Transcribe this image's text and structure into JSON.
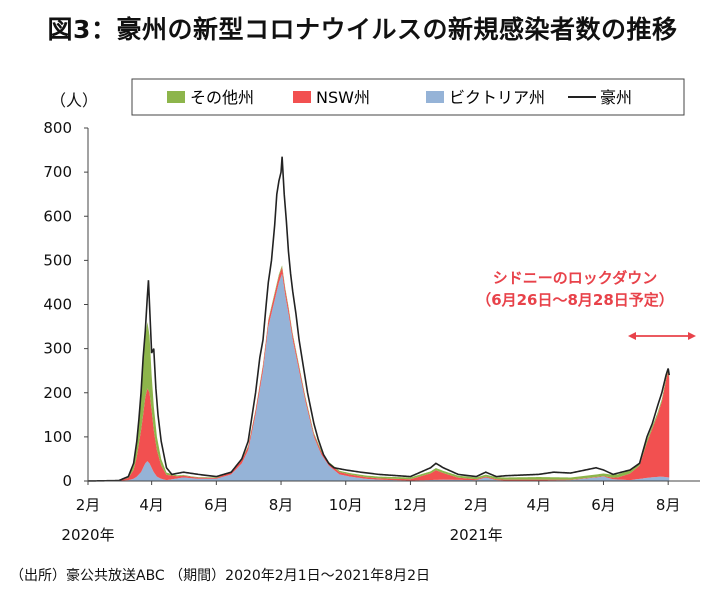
{
  "title": "図3：豪州の新型コロナウイルスの新規感染者数の推移",
  "source_note": "（出所）豪公共放送ABC （期間）2020年2月1日～2021年8月2日",
  "chart_data": {
    "type": "area",
    "stacked": true,
    "yunit": "（人）",
    "ylim": [
      0,
      800
    ],
    "yticks": [
      0,
      100,
      200,
      300,
      400,
      500,
      600,
      700,
      800
    ],
    "xlim": [
      "2020-02-01",
      "2021-08-31"
    ],
    "xticks": [
      {
        "date": "2020-02-01",
        "label": "2月"
      },
      {
        "date": "2020-04-01",
        "label": "4月"
      },
      {
        "date": "2020-06-01",
        "label": "6月"
      },
      {
        "date": "2020-08-01",
        "label": "8月"
      },
      {
        "date": "2020-10-01",
        "label": "10月"
      },
      {
        "date": "2020-12-01",
        "label": "12月"
      },
      {
        "date": "2021-02-01",
        "label": "2月"
      },
      {
        "date": "2021-04-01",
        "label": "4月"
      },
      {
        "date": "2021-06-01",
        "label": "6月"
      },
      {
        "date": "2021-08-01",
        "label": "8月"
      }
    ],
    "year_labels": [
      {
        "date": "2020-02-01",
        "label": "2020年"
      },
      {
        "date": "2021-02-01",
        "label": "2021年"
      }
    ],
    "legend_placement": "top",
    "grid": false,
    "series": [
      {
        "name": "その他州",
        "color": "#8db54b",
        "points": [
          [
            "2020-02-01",
            0
          ],
          [
            "2020-03-01",
            0
          ],
          [
            "2020-03-10",
            2
          ],
          [
            "2020-03-15",
            10
          ],
          [
            "2020-03-18",
            25
          ],
          [
            "2020-03-20",
            45
          ],
          [
            "2020-03-22",
            70
          ],
          [
            "2020-03-24",
            120
          ],
          [
            "2020-03-26",
            140
          ],
          [
            "2020-03-28",
            150
          ],
          [
            "2020-03-30",
            130
          ],
          [
            "2020-04-01",
            80
          ],
          [
            "2020-04-03",
            55
          ],
          [
            "2020-04-06",
            30
          ],
          [
            "2020-04-10",
            15
          ],
          [
            "2020-04-15",
            5
          ],
          [
            "2020-04-25",
            2
          ],
          [
            "2020-05-10",
            1
          ],
          [
            "2020-07-01",
            2
          ],
          [
            "2020-08-01",
            4
          ],
          [
            "2020-09-01",
            3
          ],
          [
            "2020-10-01",
            3
          ],
          [
            "2020-11-01",
            4
          ],
          [
            "2020-12-01",
            4
          ],
          [
            "2021-01-01",
            5
          ],
          [
            "2021-02-01",
            4
          ],
          [
            "2021-03-01",
            5
          ],
          [
            "2021-04-01",
            6
          ],
          [
            "2021-05-01",
            5
          ],
          [
            "2021-06-01",
            6
          ],
          [
            "2021-07-01",
            8
          ],
          [
            "2021-07-15",
            6
          ],
          [
            "2021-08-02",
            5
          ]
        ]
      },
      {
        "name": "NSW州",
        "color": "#f25050",
        "points": [
          [
            "2020-02-01",
            0
          ],
          [
            "2020-03-01",
            1
          ],
          [
            "2020-03-10",
            5
          ],
          [
            "2020-03-15",
            20
          ],
          [
            "2020-03-18",
            45
          ],
          [
            "2020-03-20",
            70
          ],
          [
            "2020-03-22",
            95
          ],
          [
            "2020-03-24",
            120
          ],
          [
            "2020-03-26",
            150
          ],
          [
            "2020-03-28",
            165
          ],
          [
            "2020-03-30",
            160
          ],
          [
            "2020-04-01",
            130
          ],
          [
            "2020-04-03",
            95
          ],
          [
            "2020-04-06",
            60
          ],
          [
            "2020-04-10",
            30
          ],
          [
            "2020-04-15",
            12
          ],
          [
            "2020-04-25",
            5
          ],
          [
            "2020-05-10",
            3
          ],
          [
            "2020-06-01",
            2
          ],
          [
            "2020-07-01",
            8
          ],
          [
            "2020-07-15",
            12
          ],
          [
            "2020-08-01",
            15
          ],
          [
            "2020-08-15",
            10
          ],
          [
            "2020-09-01",
            6
          ],
          [
            "2020-10-01",
            5
          ],
          [
            "2020-11-01",
            3
          ],
          [
            "2020-12-01",
            3
          ],
          [
            "2020-12-20",
            15
          ],
          [
            "2020-12-25",
            22
          ],
          [
            "2021-01-01",
            15
          ],
          [
            "2021-01-15",
            5
          ],
          [
            "2021-02-01",
            2
          ],
          [
            "2021-03-01",
            2
          ],
          [
            "2021-04-01",
            2
          ],
          [
            "2021-05-01",
            1
          ],
          [
            "2021-06-01",
            1
          ],
          [
            "2021-06-15",
            5
          ],
          [
            "2021-06-26",
            15
          ],
          [
            "2021-07-05",
            30
          ],
          [
            "2021-07-12",
            80
          ],
          [
            "2021-07-17",
            110
          ],
          [
            "2021-07-22",
            140
          ],
          [
            "2021-07-26",
            170
          ],
          [
            "2021-07-30",
            220
          ],
          [
            "2021-08-01",
            240
          ],
          [
            "2021-08-02",
            225
          ]
        ]
      },
      {
        "name": "ビクトリア州",
        "color": "#95b3d7",
        "points": [
          [
            "2020-02-01",
            0
          ],
          [
            "2020-03-01",
            0
          ],
          [
            "2020-03-10",
            2
          ],
          [
            "2020-03-15",
            5
          ],
          [
            "2020-03-18",
            10
          ],
          [
            "2020-03-20",
            15
          ],
          [
            "2020-03-22",
            20
          ],
          [
            "2020-03-24",
            30
          ],
          [
            "2020-03-26",
            40
          ],
          [
            "2020-03-28",
            45
          ],
          [
            "2020-03-30",
            40
          ],
          [
            "2020-04-01",
            30
          ],
          [
            "2020-04-03",
            20
          ],
          [
            "2020-04-06",
            10
          ],
          [
            "2020-04-10",
            5
          ],
          [
            "2020-04-15",
            2
          ],
          [
            "2020-05-01",
            8
          ],
          [
            "2020-05-15",
            5
          ],
          [
            "2020-06-01",
            5
          ],
          [
            "2020-06-15",
            15
          ],
          [
            "2020-06-25",
            40
          ],
          [
            "2020-07-01",
            70
          ],
          [
            "2020-07-08",
            150
          ],
          [
            "2020-07-15",
            250
          ],
          [
            "2020-07-20",
            350
          ],
          [
            "2020-07-25",
            400
          ],
          [
            "2020-07-30",
            450
          ],
          [
            "2020-08-02",
            470
          ],
          [
            "2020-08-05",
            420
          ],
          [
            "2020-08-08",
            380
          ],
          [
            "2020-08-12",
            320
          ],
          [
            "2020-08-18",
            250
          ],
          [
            "2020-08-24",
            180
          ],
          [
            "2020-09-01",
            100
          ],
          [
            "2020-09-08",
            60
          ],
          [
            "2020-09-15",
            35
          ],
          [
            "2020-09-25",
            15
          ],
          [
            "2020-10-05",
            10
          ],
          [
            "2020-10-20",
            5
          ],
          [
            "2020-11-01",
            3
          ],
          [
            "2020-12-01",
            1
          ],
          [
            "2021-01-01",
            3
          ],
          [
            "2021-02-01",
            2
          ],
          [
            "2021-02-10",
            8
          ],
          [
            "2021-02-20",
            2
          ],
          [
            "2021-03-01",
            1
          ],
          [
            "2021-04-01",
            1
          ],
          [
            "2021-05-01",
            2
          ],
          [
            "2021-05-25",
            8
          ],
          [
            "2021-06-01",
            10
          ],
          [
            "2021-06-10",
            4
          ],
          [
            "2021-06-26",
            2
          ],
          [
            "2021-07-15",
            8
          ],
          [
            "2021-07-25",
            10
          ],
          [
            "2021-08-02",
            8
          ]
        ]
      },
      {
        "name": "豪州",
        "color": "#222222",
        "kind": "line",
        "points": [
          [
            "2020-02-01",
            0
          ],
          [
            "2020-03-01",
            1
          ],
          [
            "2020-03-10",
            10
          ],
          [
            "2020-03-15",
            40
          ],
          [
            "2020-03-18",
            90
          ],
          [
            "2020-03-20",
            140
          ],
          [
            "2020-03-22",
            200
          ],
          [
            "2020-03-24",
            280
          ],
          [
            "2020-03-26",
            340
          ],
          [
            "2020-03-28",
            420
          ],
          [
            "2020-03-29",
            455
          ],
          [
            "2020-03-30",
            400
          ],
          [
            "2020-04-01",
            290
          ],
          [
            "2020-04-03",
            300
          ],
          [
            "2020-04-05",
            210
          ],
          [
            "2020-04-07",
            150
          ],
          [
            "2020-04-10",
            90
          ],
          [
            "2020-04-15",
            30
          ],
          [
            "2020-04-20",
            15
          ],
          [
            "2020-05-01",
            20
          ],
          [
            "2020-05-15",
            15
          ],
          [
            "2020-06-01",
            10
          ],
          [
            "2020-06-15",
            20
          ],
          [
            "2020-06-25",
            50
          ],
          [
            "2020-07-01",
            90
          ],
          [
            "2020-07-08",
            200
          ],
          [
            "2020-07-12",
            280
          ],
          [
            "2020-07-15",
            320
          ],
          [
            "2020-07-18",
            400
          ],
          [
            "2020-07-20",
            450
          ],
          [
            "2020-07-23",
            500
          ],
          [
            "2020-07-26",
            580
          ],
          [
            "2020-07-28",
            650
          ],
          [
            "2020-07-30",
            680
          ],
          [
            "2020-08-01",
            700
          ],
          [
            "2020-08-02",
            735
          ],
          [
            "2020-08-04",
            650
          ],
          [
            "2020-08-06",
            590
          ],
          [
            "2020-08-08",
            520
          ],
          [
            "2020-08-10",
            470
          ],
          [
            "2020-08-12",
            430
          ],
          [
            "2020-08-15",
            380
          ],
          [
            "2020-08-18",
            320
          ],
          [
            "2020-08-22",
            260
          ],
          [
            "2020-08-26",
            200
          ],
          [
            "2020-09-01",
            130
          ],
          [
            "2020-09-05",
            95
          ],
          [
            "2020-09-10",
            60
          ],
          [
            "2020-09-15",
            40
          ],
          [
            "2020-09-20",
            30
          ],
          [
            "2020-10-01",
            25
          ],
          [
            "2020-10-15",
            20
          ],
          [
            "2020-11-01",
            15
          ],
          [
            "2020-12-01",
            10
          ],
          [
            "2020-12-20",
            30
          ],
          [
            "2020-12-25",
            40
          ],
          [
            "2021-01-01",
            30
          ],
          [
            "2021-01-15",
            15
          ],
          [
            "2021-02-01",
            10
          ],
          [
            "2021-02-10",
            20
          ],
          [
            "2021-02-20",
            10
          ],
          [
            "2021-03-01",
            12
          ],
          [
            "2021-04-01",
            15
          ],
          [
            "2021-04-15",
            20
          ],
          [
            "2021-05-01",
            18
          ],
          [
            "2021-05-25",
            30
          ],
          [
            "2021-06-01",
            25
          ],
          [
            "2021-06-10",
            15
          ],
          [
            "2021-06-26",
            25
          ],
          [
            "2021-07-05",
            40
          ],
          [
            "2021-07-12",
            100
          ],
          [
            "2021-07-17",
            130
          ],
          [
            "2021-07-22",
            170
          ],
          [
            "2021-07-26",
            200
          ],
          [
            "2021-07-30",
            240
          ],
          [
            "2021-08-01",
            255
          ],
          [
            "2021-08-02",
            240
          ]
        ]
      }
    ],
    "annotation": {
      "line1": "シドニーのロックダウン",
      "line2": "（6月26日～8月28日予定）",
      "color": "#e8424a",
      "span": [
        "2021-06-26",
        "2021-08-28"
      ]
    }
  }
}
